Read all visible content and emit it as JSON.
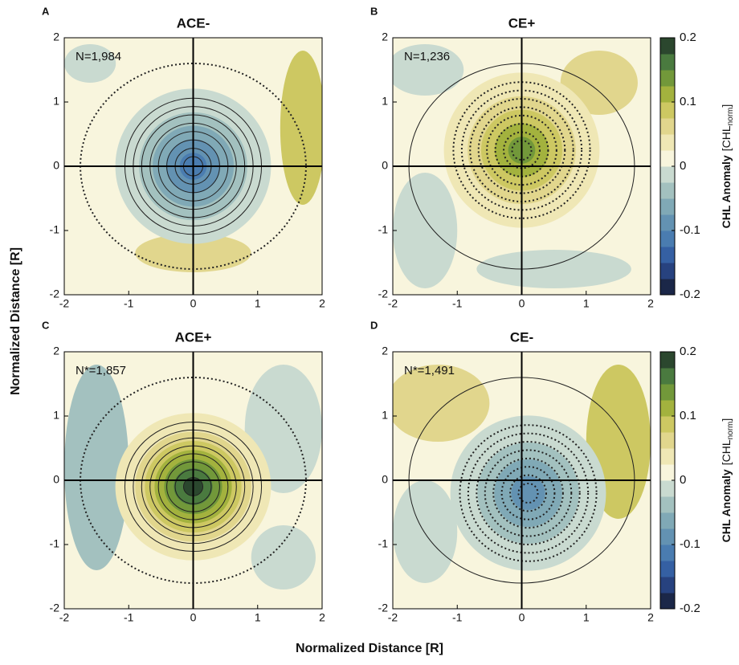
{
  "figure": {
    "xlabel": "Normalized Distance [R]",
    "ylabel": "Normalized Distance [R]"
  },
  "chart_data": [
    {
      "type": "contour",
      "panel_label": "A",
      "title": "ACE-",
      "annotation": "N=1,984",
      "xlim": [
        -2,
        2
      ],
      "ylim": [
        -2,
        2
      ],
      "xticks": [
        -2,
        -1,
        0,
        1,
        2
      ],
      "yticks": [
        -2,
        -1,
        0,
        1,
        2
      ]
    },
    {
      "type": "contour",
      "panel_label": "B",
      "title": "CE+",
      "annotation": "N=1,236",
      "xlim": [
        -2,
        2
      ],
      "ylim": [
        -2,
        2
      ],
      "xticks": [
        -2,
        -1,
        0,
        1,
        2
      ],
      "yticks": [
        -2,
        -1,
        0,
        1,
        2
      ],
      "colorbar": {
        "lim": [
          -0.2,
          0.2
        ],
        "ticks": [
          -0.2,
          -0.1,
          0,
          0.1,
          0.2
        ],
        "label": "CHL Anomaly",
        "unit_open": "[CHL",
        "unit_sub": "norm",
        "unit_close": "]",
        "colors": [
          "#1b2748",
          "#27427f",
          "#3560a3",
          "#4a7cb0",
          "#6392b2",
          "#80a9b6",
          "#a3c1bf",
          "#c9dad0",
          "#f8f5dd",
          "#efe7b5",
          "#e1d68d",
          "#cdc862",
          "#a3b23e",
          "#72983a",
          "#4a7a3f",
          "#2b472e"
        ]
      }
    },
    {
      "type": "contour",
      "panel_label": "C",
      "title": "ACE+",
      "annotation": "N*=1,857",
      "xlim": [
        -2,
        2
      ],
      "ylim": [
        -2,
        2
      ],
      "xticks": [
        -2,
        -1,
        0,
        1,
        2
      ],
      "yticks": [
        -2,
        -1,
        0,
        1,
        2
      ]
    },
    {
      "type": "contour",
      "panel_label": "D",
      "title": "CE-",
      "annotation": "N*=1,491",
      "xlim": [
        -2,
        2
      ],
      "ylim": [
        -2,
        2
      ],
      "xticks": [
        -2,
        -1,
        0,
        1,
        2
      ],
      "yticks": [
        -2,
        -1,
        0,
        1,
        2
      ],
      "colorbar": {
        "lim": [
          -0.2,
          0.2
        ],
        "ticks": [
          -0.2,
          -0.1,
          0,
          0.1,
          0.2
        ],
        "label": "CHL Anomaly",
        "unit_open": "[CHL",
        "unit_sub": "norm",
        "unit_close": "]",
        "colors": [
          "#1b2748",
          "#27427f",
          "#3560a3",
          "#4a7cb0",
          "#6392b2",
          "#80a9b6",
          "#a3c1bf",
          "#c9dad0",
          "#f8f5dd",
          "#efe7b5",
          "#e1d68d",
          "#cdc862",
          "#a3b23e",
          "#72983a",
          "#4a7a3f",
          "#2b472e"
        ]
      }
    }
  ]
}
